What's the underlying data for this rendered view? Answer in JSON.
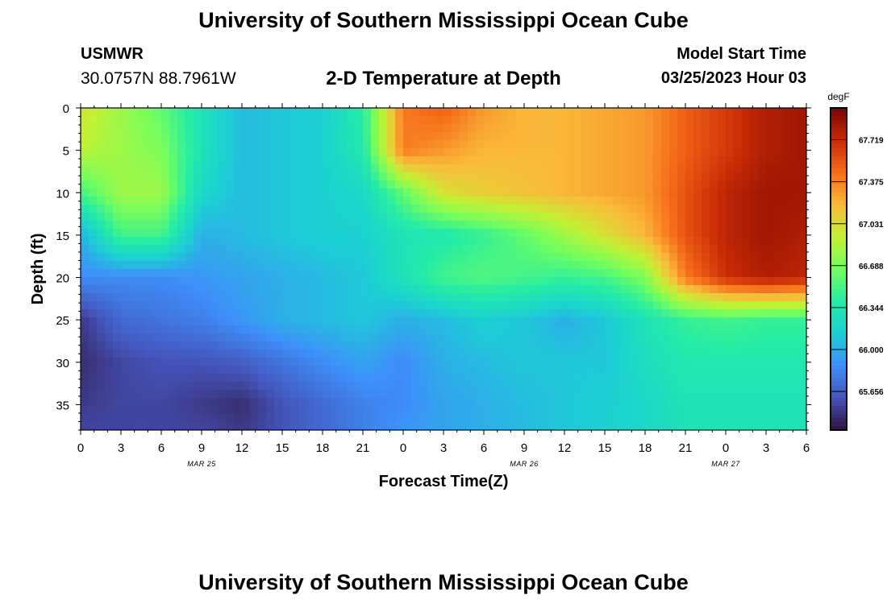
{
  "header": {
    "title": "University of Southern Mississippi Ocean Cube",
    "station_name": "USMWR",
    "station_coords": "30.0757N  88.7961W",
    "plot_title": "2-D Temperature at Depth",
    "model_start_label": "Model Start Time",
    "model_start_value": "03/25/2023 Hour 03"
  },
  "footer": {
    "title": "University of Southern Mississippi Ocean Cube"
  },
  "chart_data": {
    "type": "heatmap",
    "title": "2-D Temperature at Depth",
    "xlabel": "Forecast Time(Z)",
    "ylabel": "Depth (ft)",
    "x_hours_range": [
      0,
      54
    ],
    "x_tick_labels": [
      "0",
      "3",
      "6",
      "9",
      "12",
      "15",
      "18",
      "21",
      "0",
      "3",
      "6",
      "9",
      "12",
      "15",
      "18",
      "21",
      "0",
      "3",
      "6"
    ],
    "date_labels": [
      {
        "hour": 12,
        "label": "MAR 25"
      },
      {
        "hour": 36,
        "label": "MAR 26"
      },
      {
        "hour": 51,
        "label": "MAR 27"
      }
    ],
    "ylim": [
      0,
      38
    ],
    "y_ticks": [
      0,
      5,
      10,
      15,
      20,
      25,
      30,
      35
    ],
    "colorbar": {
      "unit": "degF",
      "range": [
        65.34,
        67.98
      ],
      "ticks": [
        65.656,
        66.0,
        66.344,
        66.688,
        67.031,
        67.375,
        67.719
      ],
      "tick_labels": [
        "65.656",
        "66.000",
        "66.344",
        "66.688",
        "67.031",
        "67.375",
        "67.719"
      ]
    },
    "x_hours": [
      0,
      3,
      6,
      9,
      12,
      15,
      18,
      21,
      24,
      27,
      30,
      33,
      36,
      39,
      42,
      45,
      48,
      51,
      54
    ],
    "depths_ft": [
      0,
      5,
      10,
      15,
      20,
      25,
      30,
      35,
      38
    ],
    "values_degF": [
      [
        67.0,
        66.8,
        66.6,
        66.3,
        66.05,
        66.1,
        66.15,
        66.4,
        67.4,
        67.5,
        67.3,
        67.2,
        67.2,
        67.25,
        67.3,
        67.5,
        67.65,
        67.8,
        67.85
      ],
      [
        66.9,
        66.8,
        66.7,
        66.3,
        66.05,
        66.1,
        66.15,
        66.35,
        67.4,
        67.3,
        67.2,
        67.2,
        67.2,
        67.25,
        67.3,
        67.5,
        67.65,
        67.8,
        67.85
      ],
      [
        66.5,
        66.8,
        66.8,
        66.2,
        66.05,
        66.1,
        66.15,
        66.2,
        66.6,
        67.0,
        67.1,
        67.15,
        67.2,
        67.25,
        67.3,
        67.55,
        67.75,
        67.85,
        67.85
      ],
      [
        66.0,
        66.5,
        66.5,
        66.0,
        66.05,
        66.1,
        66.15,
        66.15,
        66.3,
        66.35,
        66.45,
        66.6,
        66.8,
        67.0,
        67.2,
        67.55,
        67.75,
        67.85,
        67.8
      ],
      [
        65.85,
        65.85,
        65.85,
        65.9,
        65.95,
        66.0,
        66.05,
        66.1,
        66.3,
        66.5,
        66.55,
        66.5,
        66.45,
        66.5,
        66.7,
        67.4,
        67.7,
        67.8,
        67.75
      ],
      [
        65.5,
        65.7,
        65.75,
        65.8,
        65.9,
        66.0,
        66.05,
        66.1,
        66.0,
        66.05,
        66.15,
        66.1,
        66.0,
        66.1,
        66.3,
        66.45,
        66.5,
        66.45,
        66.45
      ],
      [
        65.45,
        65.55,
        65.6,
        65.6,
        65.65,
        65.75,
        65.85,
        65.95,
        65.85,
        66.0,
        66.05,
        66.1,
        66.1,
        66.1,
        66.25,
        66.35,
        66.35,
        66.35,
        66.35
      ],
      [
        65.5,
        65.55,
        65.55,
        65.5,
        65.45,
        65.6,
        65.7,
        65.8,
        65.85,
        65.95,
        66.0,
        66.05,
        66.1,
        66.15,
        66.2,
        66.3,
        66.3,
        66.3,
        66.3
      ],
      [
        65.55,
        65.55,
        65.55,
        65.55,
        65.5,
        65.6,
        65.7,
        65.8,
        65.9,
        65.95,
        66.0,
        66.05,
        66.1,
        66.15,
        66.2,
        66.3,
        66.3,
        66.3,
        66.3
      ]
    ]
  }
}
